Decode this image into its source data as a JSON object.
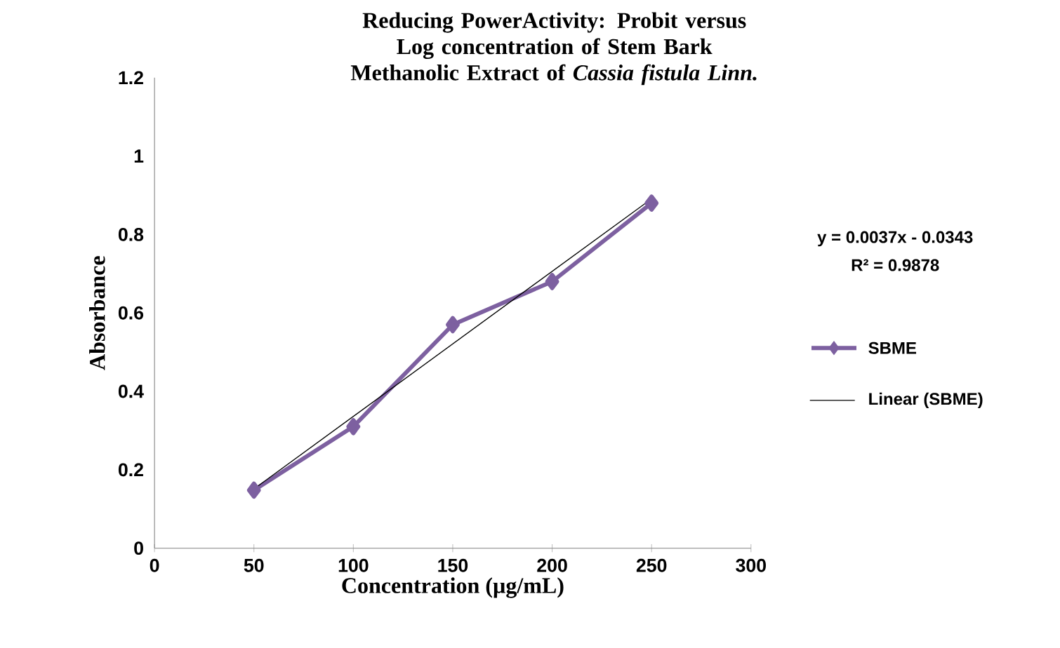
{
  "chart_data": {
    "type": "line",
    "title": "Reducing PowerActivity: Probit versus Log concentration of Stem Bark Methanolic Extract of *Cassia fistula Linn.*",
    "xlabel": "Concentration (µg/mL)",
    "ylabel": "Absorbance",
    "xlim": [
      0,
      300
    ],
    "xticks": [
      0,
      50,
      100,
      150,
      200,
      250,
      300
    ],
    "ylim": [
      0,
      1.2
    ],
    "yticks": [
      0,
      0.2,
      0.4,
      0.6,
      0.8,
      1,
      1.2
    ],
    "series": [
      {
        "name": "SBME",
        "color": "#7d60a0",
        "marker": "diamond",
        "x": [
          50,
          100,
          150,
          200,
          250
        ],
        "values": [
          0.148,
          0.31,
          0.57,
          0.68,
          0.88
        ]
      },
      {
        "name": "Linear (SBME)",
        "color": "#000000",
        "marker": "none",
        "x": [
          50,
          250
        ],
        "values": [
          0.151,
          0.891
        ]
      }
    ],
    "annotations": [
      "y = 0.0037x - 0.0343",
      "R² = 0.9878"
    ],
    "legend": "right",
    "grid": false
  }
}
